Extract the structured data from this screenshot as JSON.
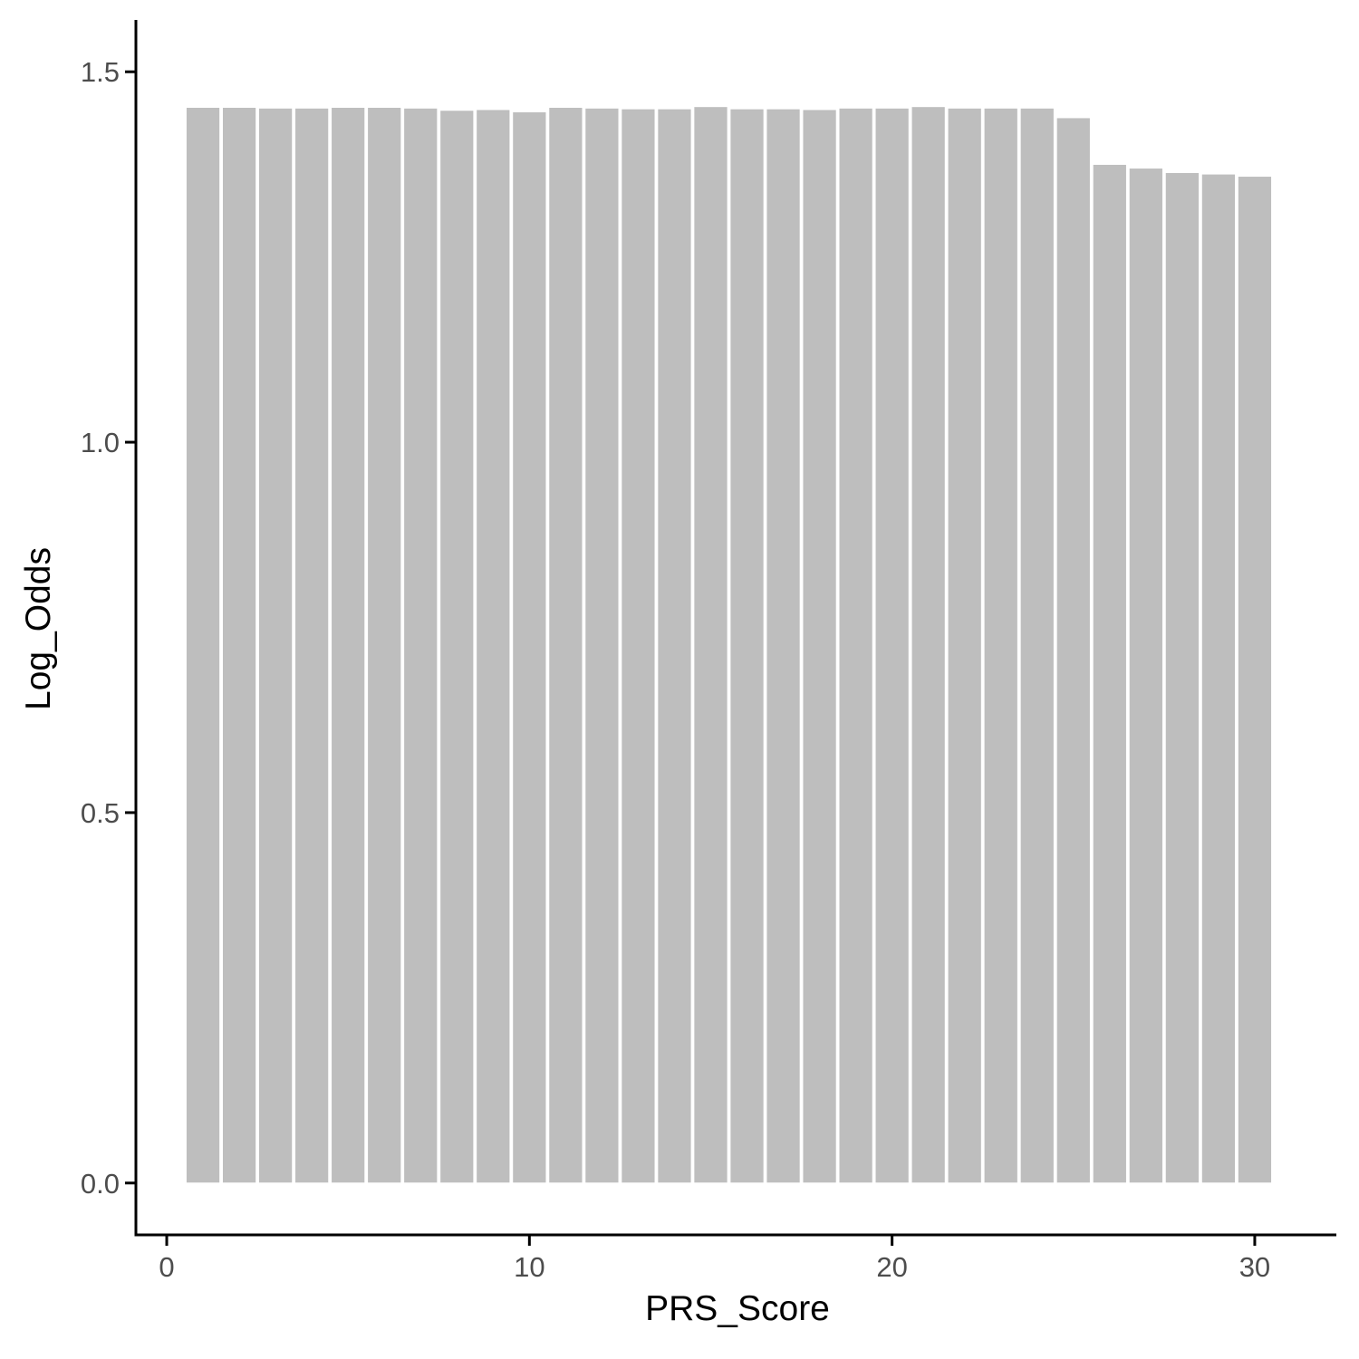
{
  "colors": {
    "bar_fill": "#bebebe",
    "bar_stroke": "#ffffff",
    "axis_line": "#000000",
    "tick_text": "#4d4d4d",
    "background": "#ffffff"
  },
  "chart_data": {
    "type": "bar",
    "title": "",
    "xlabel": "PRS_Score",
    "ylabel": "Log_Odds",
    "x": [
      1,
      2,
      3,
      4,
      5,
      6,
      7,
      8,
      9,
      10,
      11,
      12,
      13,
      14,
      15,
      16,
      17,
      18,
      19,
      20,
      21,
      22,
      23,
      24,
      25,
      26,
      27,
      28,
      29,
      30
    ],
    "values": [
      1.452,
      1.452,
      1.451,
      1.451,
      1.452,
      1.452,
      1.451,
      1.448,
      1.449,
      1.446,
      1.452,
      1.451,
      1.45,
      1.45,
      1.453,
      1.45,
      1.45,
      1.449,
      1.451,
      1.451,
      1.453,
      1.451,
      1.451,
      1.451,
      1.438,
      1.375,
      1.37,
      1.364,
      1.362,
      1.359
    ],
    "xlim": [
      -0.85,
      32.25
    ],
    "ylim": [
      -0.07,
      1.57
    ],
    "x_ticks": [
      0,
      10,
      20,
      30
    ],
    "x_tick_labels": [
      "0",
      "10",
      "20",
      "30"
    ],
    "y_ticks": [
      0.0,
      0.5,
      1.0,
      1.5
    ],
    "y_tick_labels": [
      "0.0",
      "0.5",
      "1.0",
      "1.5"
    ],
    "grid": false,
    "legend": "none"
  }
}
